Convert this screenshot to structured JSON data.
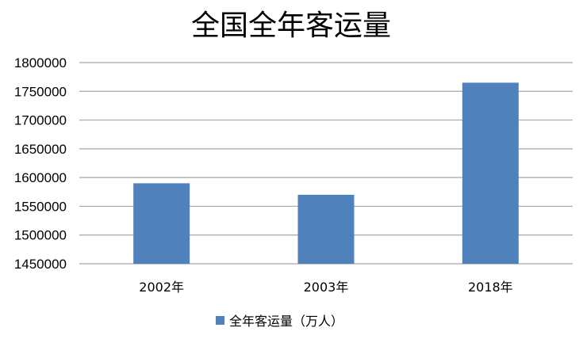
{
  "chart_data": {
    "type": "bar",
    "title": "全国全年客运量",
    "categories": [
      "2002年",
      "2003年",
      "2018年"
    ],
    "series": [
      {
        "name": "全年客运量（万人）",
        "values": [
          1590000,
          1570000,
          1765000
        ]
      }
    ],
    "ylim": [
      1450000,
      1800000
    ],
    "yticks": [
      1450000,
      1500000,
      1550000,
      1600000,
      1650000,
      1700000,
      1750000,
      1800000
    ],
    "grid": true,
    "legend": "bottom",
    "colors": {
      "bar": "#4F81BD",
      "grid": "#A6A6A6"
    }
  }
}
